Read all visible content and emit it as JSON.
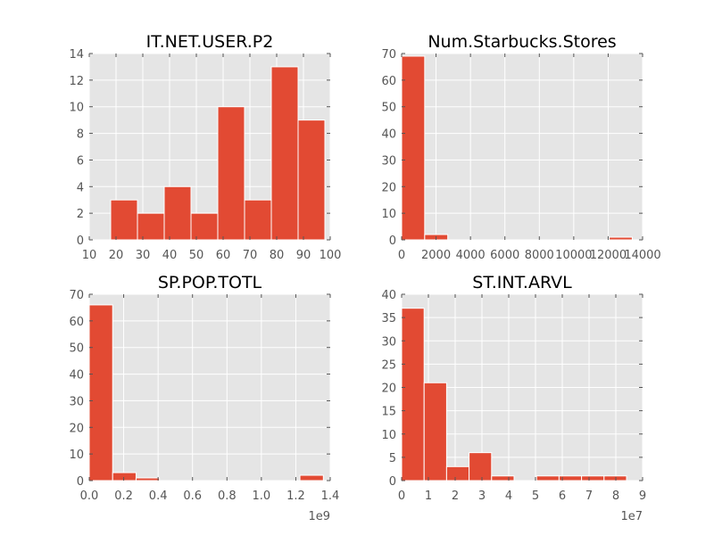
{
  "figure": {
    "background": "#ffffff",
    "panel_background": "#e5e5e5",
    "grid_color": "#ffffff",
    "bar_color": "#e24a33",
    "tick_color": "#555555"
  },
  "chart_data": [
    {
      "type": "histogram",
      "title": "IT.NET.USER.P2",
      "grid": true,
      "xlim": [
        10,
        100
      ],
      "ylim": [
        0,
        14
      ],
      "xticks": [
        "10",
        "20",
        "30",
        "40",
        "50",
        "60",
        "70",
        "80",
        "90",
        "100"
      ],
      "yticks": [
        "0",
        "2",
        "4",
        "6",
        "8",
        "10",
        "12",
        "14"
      ],
      "xtick_values": [
        10,
        20,
        30,
        40,
        50,
        60,
        70,
        80,
        90,
        100
      ],
      "ytick_values": [
        0,
        2,
        4,
        6,
        8,
        10,
        12,
        14
      ],
      "offset_label": "",
      "bin_edges": [
        18,
        28,
        38,
        48,
        58,
        68,
        78,
        88,
        98
      ],
      "bars": [
        {
          "x0": 18.0,
          "x1": 28.0,
          "count": 3
        },
        {
          "x0": 28.0,
          "x1": 38.0,
          "count": 2
        },
        {
          "x0": 38.0,
          "x1": 48.0,
          "count": 4
        },
        {
          "x0": 48.0,
          "x1": 58.0,
          "count": 2
        },
        {
          "x0": 58.0,
          "x1": 68.0,
          "count": 10
        },
        {
          "x0": 68.0,
          "x1": 78.0,
          "count": 3
        },
        {
          "x0": 78.0,
          "x1": 88.0,
          "count": 13
        },
        {
          "x0": 88.0,
          "x1": 98.0,
          "count": 9
        }
      ]
    },
    {
      "type": "histogram",
      "title": "Num.Starbucks.Stores",
      "grid": true,
      "xlim": [
        0,
        14000
      ],
      "ylim": [
        0,
        70
      ],
      "xticks": [
        "0",
        "2000",
        "4000",
        "6000",
        "8000",
        "10000",
        "12000",
        "14000"
      ],
      "yticks": [
        "0",
        "10",
        "20",
        "30",
        "40",
        "50",
        "60",
        "70"
      ],
      "xtick_values": [
        0,
        2000,
        4000,
        6000,
        8000,
        10000,
        12000,
        14000
      ],
      "ytick_values": [
        0,
        10,
        20,
        30,
        40,
        50,
        60,
        70
      ],
      "offset_label": "",
      "bars": [
        {
          "x0": 0,
          "x1": 1340,
          "count": 69
        },
        {
          "x0": 1340,
          "x1": 2680,
          "count": 2
        },
        {
          "x0": 2680,
          "x1": 4020,
          "count": 0
        },
        {
          "x0": 4020,
          "x1": 5360,
          "count": 0
        },
        {
          "x0": 5360,
          "x1": 6700,
          "count": 0
        },
        {
          "x0": 6700,
          "x1": 8040,
          "count": 0
        },
        {
          "x0": 8040,
          "x1": 9380,
          "count": 0
        },
        {
          "x0": 9380,
          "x1": 10720,
          "count": 0
        },
        {
          "x0": 10720,
          "x1": 12060,
          "count": 0
        },
        {
          "x0": 12060,
          "x1": 13400,
          "count": 1
        }
      ]
    },
    {
      "type": "histogram",
      "title": "SP.POP.TOTL",
      "grid": true,
      "xlim": [
        0,
        1.4
      ],
      "ylim": [
        0,
        70
      ],
      "xticks": [
        "0.0",
        "0.2",
        "0.4",
        "0.6",
        "0.8",
        "1.0",
        "1.2",
        "1.4"
      ],
      "yticks": [
        "0",
        "10",
        "20",
        "30",
        "40",
        "50",
        "60",
        "70"
      ],
      "xtick_values": [
        0,
        0.2,
        0.4,
        0.6,
        0.8,
        1.0,
        1.2,
        1.4
      ],
      "ytick_values": [
        0,
        10,
        20,
        30,
        40,
        50,
        60,
        70
      ],
      "offset_label": "1e9",
      "bars": [
        {
          "x0": 0,
          "x1": 0.136,
          "count": 66
        },
        {
          "x0": 0.136,
          "x1": 0.272,
          "count": 3
        },
        {
          "x0": 0.272,
          "x1": 0.408,
          "count": 1
        },
        {
          "x0": 0.408,
          "x1": 0.544,
          "count": 0
        },
        {
          "x0": 0.544,
          "x1": 0.68,
          "count": 0
        },
        {
          "x0": 0.68,
          "x1": 0.816,
          "count": 0
        },
        {
          "x0": 0.816,
          "x1": 0.952,
          "count": 0
        },
        {
          "x0": 0.952,
          "x1": 1.088,
          "count": 0
        },
        {
          "x0": 1.088,
          "x1": 1.224,
          "count": 0
        },
        {
          "x0": 1.224,
          "x1": 1.36,
          "count": 2
        }
      ]
    },
    {
      "type": "histogram",
      "title": "ST.INT.ARVL",
      "grid": true,
      "xlim": [
        0,
        9
      ],
      "ylim": [
        0,
        40
      ],
      "xticks": [
        "0",
        "1",
        "2",
        "3",
        "4",
        "5",
        "6",
        "7",
        "8",
        "9"
      ],
      "yticks": [
        "0",
        "5",
        "10",
        "15",
        "20",
        "25",
        "30",
        "35",
        "40"
      ],
      "xtick_values": [
        0,
        1,
        2,
        3,
        4,
        5,
        6,
        7,
        8,
        9
      ],
      "ytick_values": [
        0,
        5,
        10,
        15,
        20,
        25,
        30,
        35,
        40
      ],
      "offset_label": "1e7",
      "bars": [
        {
          "x0": 0,
          "x1": 0.84,
          "count": 37
        },
        {
          "x0": 0.84,
          "x1": 1.68,
          "count": 21
        },
        {
          "x0": 1.68,
          "x1": 2.52,
          "count": 3
        },
        {
          "x0": 2.52,
          "x1": 3.36,
          "count": 6
        },
        {
          "x0": 3.36,
          "x1": 4.2,
          "count": 1
        },
        {
          "x0": 4.2,
          "x1": 5.04,
          "count": 0
        },
        {
          "x0": 5.04,
          "x1": 5.88,
          "count": 1
        },
        {
          "x0": 5.88,
          "x1": 6.72,
          "count": 1
        },
        {
          "x0": 6.72,
          "x1": 7.56,
          "count": 1
        },
        {
          "x0": 7.56,
          "x1": 8.4,
          "count": 1
        }
      ]
    }
  ]
}
